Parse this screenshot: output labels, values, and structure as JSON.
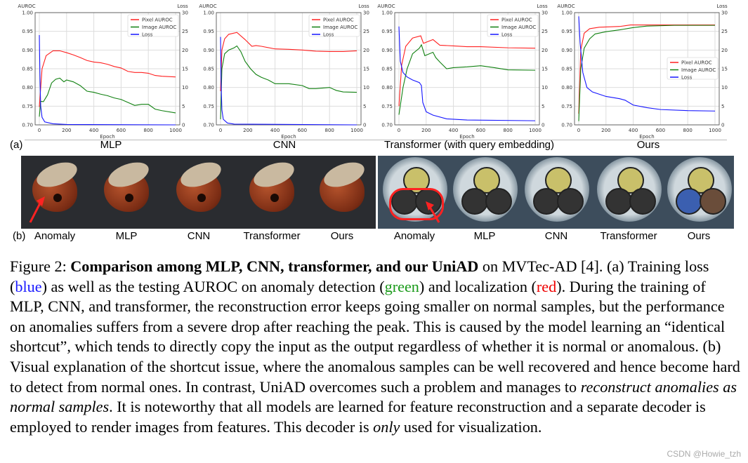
{
  "panel_a_tag": "(a)",
  "panel_b_tag": "(b)",
  "subtitles": [
    "MLP",
    "CNN",
    "Transformer (with query embedding)",
    "Ours"
  ],
  "colors": {
    "pixel": "#ff2020",
    "image": "#108010",
    "loss": "#1515ff"
  },
  "chart_data": [
    {
      "type": "line",
      "title": "",
      "xlabel": "Epoch",
      "ylabel": "AUROC",
      "y2label": "Loss",
      "xlim": [
        0,
        1000
      ],
      "ylim": [
        0.7,
        1.0
      ],
      "y2lim": [
        0,
        30
      ],
      "xticks": [
        0,
        200,
        400,
        600,
        800,
        1000
      ],
      "yticks": [
        "0.70",
        "0.75",
        "0.80",
        "0.85",
        "0.90",
        "0.95",
        "1.00"
      ],
      "y2ticks": [
        0,
        5,
        10,
        15,
        20,
        25,
        30
      ],
      "grid": true,
      "legend": "top-right",
      "series": [
        {
          "name": "Pixel AUROC",
          "axis": "left",
          "points": [
            [
              0,
              0.748
            ],
            [
              20,
              0.85
            ],
            [
              50,
              0.885
            ],
            [
              100,
              0.898
            ],
            [
              150,
              0.898
            ],
            [
              200,
              0.893
            ],
            [
              250,
              0.887
            ],
            [
              300,
              0.88
            ],
            [
              350,
              0.872
            ],
            [
              400,
              0.868
            ],
            [
              450,
              0.866
            ],
            [
              500,
              0.862
            ],
            [
              550,
              0.856
            ],
            [
              600,
              0.852
            ],
            [
              650,
              0.843
            ],
            [
              700,
              0.84
            ],
            [
              750,
              0.84
            ],
            [
              800,
              0.838
            ],
            [
              850,
              0.832
            ],
            [
              900,
              0.83
            ],
            [
              1000,
              0.828
            ]
          ]
        },
        {
          "name": "Image AUROC",
          "axis": "left",
          "points": [
            [
              0,
              0.722
            ],
            [
              10,
              0.763
            ],
            [
              30,
              0.762
            ],
            [
              60,
              0.78
            ],
            [
              90,
              0.812
            ],
            [
              120,
              0.822
            ],
            [
              150,
              0.825
            ],
            [
              180,
              0.815
            ],
            [
              200,
              0.82
            ],
            [
              250,
              0.815
            ],
            [
              300,
              0.805
            ],
            [
              350,
              0.79
            ],
            [
              400,
              0.787
            ],
            [
              450,
              0.782
            ],
            [
              500,
              0.778
            ],
            [
              550,
              0.772
            ],
            [
              600,
              0.768
            ],
            [
              650,
              0.76
            ],
            [
              700,
              0.752
            ],
            [
              750,
              0.755
            ],
            [
              800,
              0.755
            ],
            [
              850,
              0.742
            ],
            [
              900,
              0.738
            ],
            [
              1000,
              0.732
            ]
          ]
        },
        {
          "name": "Loss",
          "axis": "right",
          "points": [
            [
              0,
              24
            ],
            [
              5,
              12
            ],
            [
              10,
              5
            ],
            [
              20,
              2
            ],
            [
              40,
              0.8
            ],
            [
              100,
              0.3
            ],
            [
              200,
              0.1
            ],
            [
              1000,
              0
            ]
          ]
        }
      ]
    },
    {
      "type": "line",
      "title": "",
      "xlabel": "Epoch",
      "ylabel": "AUROC",
      "y2label": "Loss",
      "xlim": [
        0,
        1000
      ],
      "ylim": [
        0.7,
        1.0
      ],
      "y2lim": [
        0,
        30
      ],
      "xticks": [
        0,
        200,
        400,
        600,
        800,
        1000
      ],
      "yticks": [
        "0.70",
        "0.75",
        "0.80",
        "0.85",
        "0.90",
        "0.95",
        "1.00"
      ],
      "y2ticks": [
        0,
        5,
        10,
        15,
        20,
        25,
        30
      ],
      "grid": true,
      "legend": "top-right",
      "series": [
        {
          "name": "Pixel AUROC",
          "axis": "left",
          "points": [
            [
              0,
              0.79
            ],
            [
              10,
              0.9
            ],
            [
              30,
              0.93
            ],
            [
              60,
              0.942
            ],
            [
              120,
              0.947
            ],
            [
              180,
              0.928
            ],
            [
              230,
              0.91
            ],
            [
              260,
              0.912
            ],
            [
              300,
              0.91
            ],
            [
              400,
              0.903
            ],
            [
              500,
              0.902
            ],
            [
              600,
              0.9
            ],
            [
              700,
              0.897
            ],
            [
              800,
              0.896
            ],
            [
              900,
              0.896
            ],
            [
              1000,
              0.898
            ]
          ]
        },
        {
          "name": "Image AUROC",
          "axis": "left",
          "points": [
            [
              0,
              0.715
            ],
            [
              10,
              0.85
            ],
            [
              30,
              0.89
            ],
            [
              60,
              0.9
            ],
            [
              100,
              0.906
            ],
            [
              120,
              0.911
            ],
            [
              150,
              0.895
            ],
            [
              180,
              0.87
            ],
            [
              220,
              0.85
            ],
            [
              260,
              0.835
            ],
            [
              300,
              0.827
            ],
            [
              350,
              0.82
            ],
            [
              400,
              0.81
            ],
            [
              500,
              0.81
            ],
            [
              600,
              0.805
            ],
            [
              650,
              0.797
            ],
            [
              700,
              0.797
            ],
            [
              800,
              0.8
            ],
            [
              850,
              0.792
            ],
            [
              900,
              0.788
            ],
            [
              1000,
              0.787
            ]
          ]
        },
        {
          "name": "Loss",
          "axis": "right",
          "points": [
            [
              0,
              23.5
            ],
            [
              5,
              10
            ],
            [
              10,
              4
            ],
            [
              20,
              1.5
            ],
            [
              50,
              0.5
            ],
            [
              100,
              0.2
            ],
            [
              1000,
              0
            ]
          ]
        }
      ]
    },
    {
      "type": "line",
      "title": "",
      "xlabel": "Epoch",
      "ylabel": "AUROC",
      "y2label": "Loss",
      "xlim": [
        0,
        1000
      ],
      "ylim": [
        0.7,
        1.0
      ],
      "y2lim": [
        0,
        30
      ],
      "xticks": [
        0,
        200,
        400,
        600,
        800,
        1000
      ],
      "yticks": [
        "0.70",
        "0.75",
        "0.80",
        "0.85",
        "0.90",
        "0.95",
        "1.00"
      ],
      "y2ticks": [
        0,
        5,
        10,
        15,
        20,
        25,
        30
      ],
      "grid": true,
      "legend": "top-right",
      "series": [
        {
          "name": "Pixel AUROC",
          "axis": "left",
          "points": [
            [
              0,
              0.75
            ],
            [
              20,
              0.86
            ],
            [
              50,
              0.91
            ],
            [
              100,
              0.932
            ],
            [
              160,
              0.938
            ],
            [
              180,
              0.918
            ],
            [
              250,
              0.928
            ],
            [
              300,
              0.913
            ],
            [
              400,
              0.911
            ],
            [
              500,
              0.909
            ],
            [
              600,
              0.909
            ],
            [
              800,
              0.906
            ],
            [
              1000,
              0.905
            ]
          ]
        },
        {
          "name": "Image AUROC",
          "axis": "left",
          "points": [
            [
              0,
              0.727
            ],
            [
              30,
              0.8
            ],
            [
              60,
              0.85
            ],
            [
              100,
              0.89
            ],
            [
              150,
              0.905
            ],
            [
              165,
              0.914
            ],
            [
              190,
              0.885
            ],
            [
              250,
              0.894
            ],
            [
              270,
              0.88
            ],
            [
              300,
              0.868
            ],
            [
              350,
              0.85
            ],
            [
              400,
              0.853
            ],
            [
              500,
              0.855
            ],
            [
              600,
              0.858
            ],
            [
              700,
              0.853
            ],
            [
              800,
              0.847
            ],
            [
              1000,
              0.846
            ]
          ]
        },
        {
          "name": "Loss",
          "axis": "right",
          "points": [
            [
              0,
              26.3
            ],
            [
              10,
              17
            ],
            [
              30,
              14
            ],
            [
              60,
              12.8
            ],
            [
              100,
              12
            ],
            [
              150,
              11.3
            ],
            [
              165,
              10.5
            ],
            [
              175,
              6
            ],
            [
              200,
              3.5
            ],
            [
              250,
              2.6
            ],
            [
              350,
              1.6
            ],
            [
              500,
              1.3
            ],
            [
              1000,
              1.1
            ]
          ]
        }
      ]
    },
    {
      "type": "line",
      "title": "",
      "xlabel": "Epoch",
      "ylabel": "AUROC",
      "y2label": "Loss",
      "xlim": [
        0,
        1000
      ],
      "ylim": [
        0.7,
        1.0
      ],
      "y2lim": [
        0,
        30
      ],
      "xticks": [
        0,
        200,
        400,
        600,
        800,
        1000
      ],
      "yticks": [
        "0.70",
        "0.75",
        "0.80",
        "0.85",
        "0.90",
        "0.95",
        "1.00"
      ],
      "y2ticks": [
        0,
        5,
        10,
        15,
        20,
        25,
        30
      ],
      "grid": true,
      "legend": "center-right",
      "series": [
        {
          "name": "Pixel AUROC",
          "axis": "left",
          "points": [
            [
              0,
              0.73
            ],
            [
              15,
              0.9
            ],
            [
              40,
              0.945
            ],
            [
              80,
              0.957
            ],
            [
              150,
              0.961
            ],
            [
              300,
              0.963
            ],
            [
              380,
              0.967
            ],
            [
              1000,
              0.967
            ]
          ]
        },
        {
          "name": "Image AUROC",
          "axis": "left",
          "points": [
            [
              0,
              0.71
            ],
            [
              15,
              0.85
            ],
            [
              40,
              0.905
            ],
            [
              80,
              0.93
            ],
            [
              120,
              0.943
            ],
            [
              200,
              0.949
            ],
            [
              300,
              0.954
            ],
            [
              400,
              0.96
            ],
            [
              500,
              0.964
            ],
            [
              700,
              0.966
            ],
            [
              1000,
              0.966
            ]
          ]
        },
        {
          "name": "Loss",
          "axis": "right",
          "points": [
            [
              0,
              29
            ],
            [
              10,
              22
            ],
            [
              30,
              14
            ],
            [
              60,
              10
            ],
            [
              100,
              8.8
            ],
            [
              200,
              7.6
            ],
            [
              300,
              7
            ],
            [
              340,
              6.6
            ],
            [
              400,
              5.3
            ],
            [
              500,
              4.6
            ],
            [
              600,
              4.1
            ],
            [
              800,
              3.8
            ],
            [
              1000,
              3.7
            ]
          ]
        }
      ]
    }
  ],
  "photo_labels": [
    "Anomaly",
    "MLP",
    "CNN",
    "Transformer",
    "Ours",
    "Anomaly",
    "MLP",
    "CNN",
    "Transformer",
    "Ours"
  ],
  "caption": [
    {
      "t": "Figure 2:  "
    },
    {
      "t": "Comparison among MLP, CNN, transformer, and our UniAD",
      "b": true
    },
    {
      "t": " on MVTec-AD [4]. (a) Training loss ("
    },
    {
      "t": "blue",
      "c": "blue"
    },
    {
      "t": ") as well as the testing AUROC on anomaly detection ("
    },
    {
      "t": "green",
      "c": "green"
    },
    {
      "t": ") and localization ("
    },
    {
      "t": "red",
      "c": "red"
    },
    {
      "t": "). During the training of MLP, CNN, and transformer, the reconstruction error keeps going smaller on normal samples, but the performance on anomalies suffers from a severe drop after reaching the peak. This is caused by the model learning an “identical shortcut”, which tends to directly copy the input as the output regardless of whether it is normal or anomalous. (b) Visual explanation of the shortcut issue, where the anomalous samples can be well recovered and hence become hard to detect from normal ones. In contrast, UniAD overcomes such a problem and manages to "
    },
    {
      "t": "reconstruct anomalies as normal samples",
      "i": true
    },
    {
      "t": ". It is noteworthy that all models are learned for feature reconstruction and a separate decoder is employed to render images from features. This decoder is "
    },
    {
      "t": "only",
      "i": true
    },
    {
      "t": " used for visualization."
    }
  ],
  "watermark": "CSDN @Howie_tzh"
}
